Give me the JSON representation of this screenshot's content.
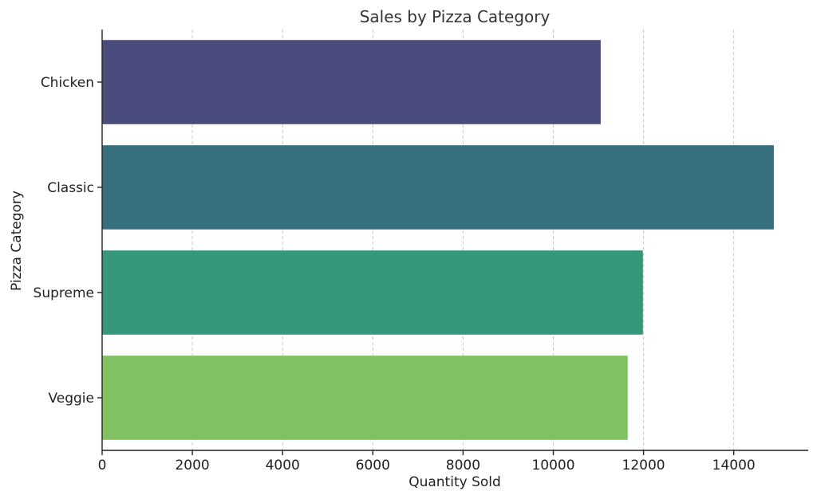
{
  "chart_data": {
    "type": "bar",
    "orientation": "horizontal",
    "title": "Sales by Pizza Category",
    "xlabel": "Quantity Sold",
    "ylabel": "Pizza Category",
    "categories": [
      "Chicken",
      "Classic",
      "Supreme",
      "Veggie"
    ],
    "values": [
      11050,
      14888,
      11987,
      11649
    ],
    "colors": [
      "#4a4c7e",
      "#36707e",
      "#35977c",
      "#80c261"
    ],
    "xlim": [
      0,
      15650
    ],
    "xticks": [
      0,
      2000,
      4000,
      6000,
      8000,
      10000,
      12000,
      14000
    ],
    "grid": "x-dashed"
  }
}
